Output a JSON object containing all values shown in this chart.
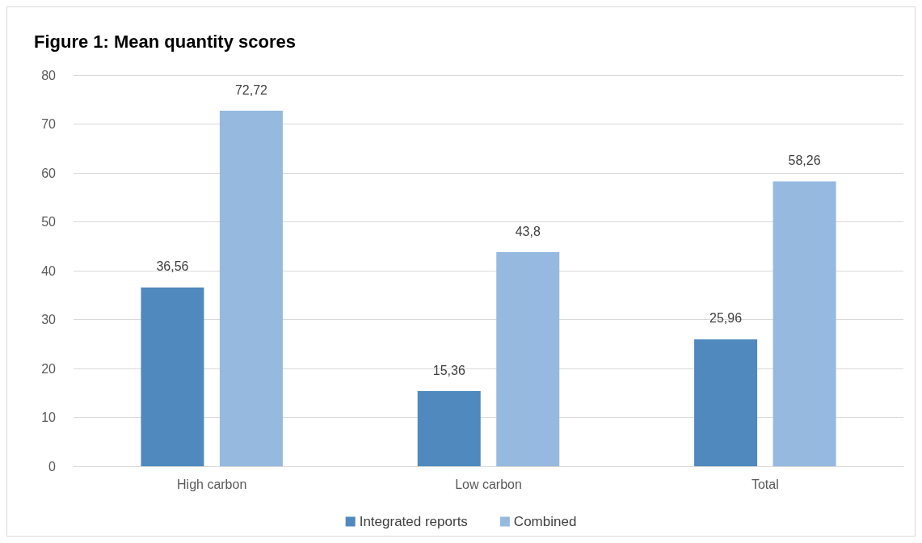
{
  "chart_data": {
    "type": "bar",
    "title": "Figure 1: Mean quantity scores",
    "categories": [
      "High carbon",
      "Low carbon",
      "Total"
    ],
    "series": [
      {
        "name": "Integrated reports",
        "color": "#4f89be",
        "values": [
          36.56,
          15.36,
          25.96
        ],
        "value_labels": [
          "36,56",
          "15,36",
          "25,96"
        ]
      },
      {
        "name": "Combined",
        "color": "#96b9e0",
        "values": [
          72.72,
          43.8,
          58.26
        ],
        "value_labels": [
          "72,72",
          "43,8",
          "58,26"
        ]
      }
    ],
    "ylim": [
      0,
      80
    ],
    "yticks": [
      0,
      10,
      20,
      30,
      40,
      50,
      60,
      70,
      80
    ],
    "grid": "y",
    "legend": "bottom"
  }
}
